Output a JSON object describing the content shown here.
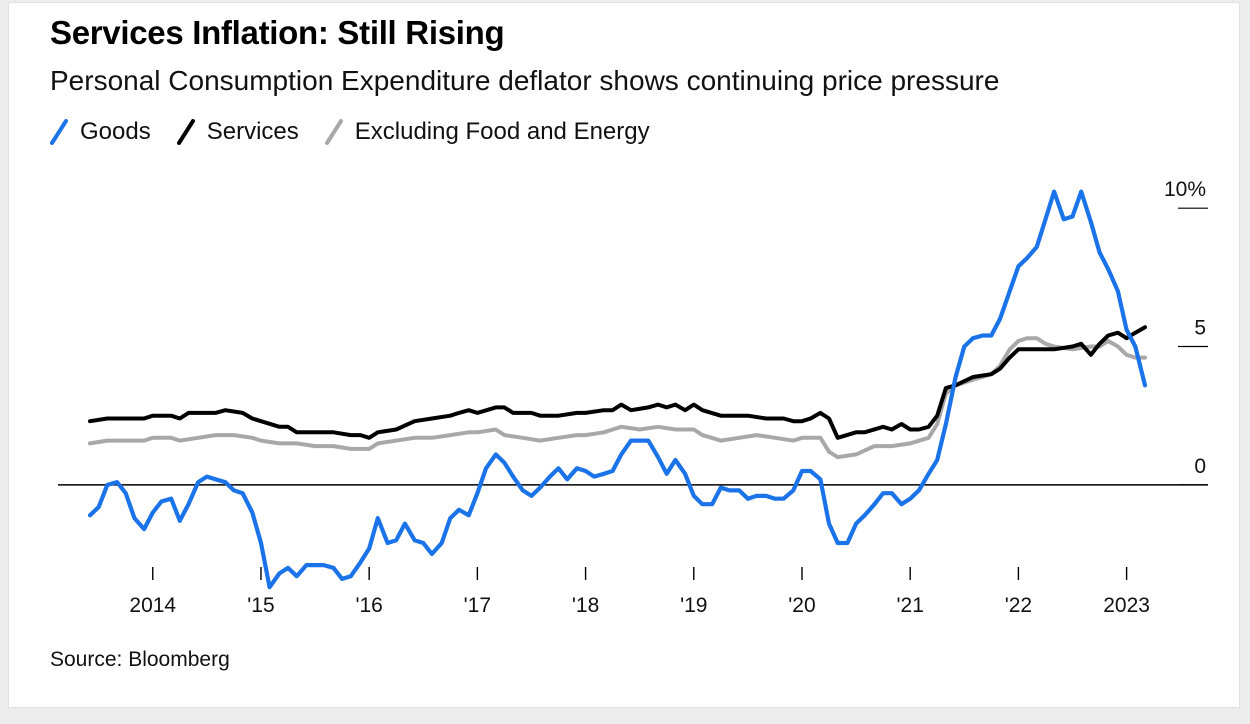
{
  "colors": {
    "goods": "#1a73e8",
    "services": "#000000",
    "core": "#a8a8a8"
  },
  "chart_data": {
    "type": "line",
    "title": "Services Inflation: Still Rising",
    "subtitle": "Personal Consumption Expenditure deflator shows continuing price pressure",
    "source": "Source: Bloomberg",
    "xlim": [
      2013.42,
      2023.17
    ],
    "ylim": [
      -3.8,
      11.2
    ],
    "y_ticks": [
      {
        "value": 10,
        "label": "10%"
      },
      {
        "value": 5,
        "label": "5"
      },
      {
        "value": 0,
        "label": "0"
      }
    ],
    "x_ticks": [
      {
        "value": 2014,
        "label": "2014"
      },
      {
        "value": 2015,
        "label": "'15"
      },
      {
        "value": 2016,
        "label": "'16"
      },
      {
        "value": 2017,
        "label": "'17"
      },
      {
        "value": 2018,
        "label": "'18"
      },
      {
        "value": 2019,
        "label": "'19"
      },
      {
        "value": 2020,
        "label": "'20"
      },
      {
        "value": 2021,
        "label": "'21"
      },
      {
        "value": 2022,
        "label": "'22"
      },
      {
        "value": 2023,
        "label": "2023"
      }
    ],
    "legend_position": "top-left",
    "grid": false,
    "series": [
      {
        "name": "Goods",
        "color": "#1a73e8",
        "points": [
          [
            2013.42,
            -1.1
          ],
          [
            2013.5,
            -0.8
          ],
          [
            2013.58,
            0.0
          ],
          [
            2013.67,
            0.1
          ],
          [
            2013.75,
            -0.3
          ],
          [
            2013.83,
            -1.2
          ],
          [
            2013.92,
            -1.6
          ],
          [
            2014.0,
            -1.0
          ],
          [
            2014.08,
            -0.6
          ],
          [
            2014.17,
            -0.5
          ],
          [
            2014.25,
            -1.3
          ],
          [
            2014.33,
            -0.7
          ],
          [
            2014.42,
            0.1
          ],
          [
            2014.5,
            0.3
          ],
          [
            2014.58,
            0.2
          ],
          [
            2014.67,
            0.1
          ],
          [
            2014.75,
            -0.2
          ],
          [
            2014.83,
            -0.3
          ],
          [
            2014.92,
            -1.0
          ],
          [
            2015.0,
            -2.1
          ],
          [
            2015.08,
            -3.7
          ],
          [
            2015.17,
            -3.2
          ],
          [
            2015.25,
            -3.0
          ],
          [
            2015.33,
            -3.3
          ],
          [
            2015.42,
            -2.9
          ],
          [
            2015.5,
            -2.9
          ],
          [
            2015.58,
            -2.9
          ],
          [
            2015.67,
            -3.0
          ],
          [
            2015.75,
            -3.4
          ],
          [
            2015.83,
            -3.3
          ],
          [
            2015.92,
            -2.8
          ],
          [
            2016.0,
            -2.3
          ],
          [
            2016.08,
            -1.2
          ],
          [
            2016.17,
            -2.1
          ],
          [
            2016.25,
            -2.0
          ],
          [
            2016.33,
            -1.4
          ],
          [
            2016.42,
            -2.0
          ],
          [
            2016.5,
            -2.1
          ],
          [
            2016.58,
            -2.5
          ],
          [
            2016.67,
            -2.1
          ],
          [
            2016.75,
            -1.2
          ],
          [
            2016.83,
            -0.9
          ],
          [
            2016.92,
            -1.1
          ],
          [
            2017.0,
            -0.3
          ],
          [
            2017.08,
            0.6
          ],
          [
            2017.17,
            1.1
          ],
          [
            2017.25,
            0.8
          ],
          [
            2017.33,
            0.3
          ],
          [
            2017.42,
            -0.2
          ],
          [
            2017.5,
            -0.4
          ],
          [
            2017.58,
            -0.1
          ],
          [
            2017.67,
            0.3
          ],
          [
            2017.75,
            0.6
          ],
          [
            2017.83,
            0.2
          ],
          [
            2017.92,
            0.6
          ],
          [
            2018.0,
            0.5
          ],
          [
            2018.08,
            0.3
          ],
          [
            2018.17,
            0.4
          ],
          [
            2018.25,
            0.5
          ],
          [
            2018.33,
            1.1
          ],
          [
            2018.42,
            1.6
          ],
          [
            2018.5,
            1.6
          ],
          [
            2018.58,
            1.6
          ],
          [
            2018.67,
            1.0
          ],
          [
            2018.75,
            0.4
          ],
          [
            2018.83,
            0.9
          ],
          [
            2018.92,
            0.4
          ],
          [
            2019.0,
            -0.4
          ],
          [
            2019.08,
            -0.7
          ],
          [
            2019.17,
            -0.7
          ],
          [
            2019.25,
            -0.1
          ],
          [
            2019.33,
            -0.2
          ],
          [
            2019.42,
            -0.2
          ],
          [
            2019.5,
            -0.5
          ],
          [
            2019.58,
            -0.4
          ],
          [
            2019.67,
            -0.4
          ],
          [
            2019.75,
            -0.5
          ],
          [
            2019.83,
            -0.5
          ],
          [
            2019.92,
            -0.2
          ],
          [
            2020.0,
            0.5
          ],
          [
            2020.08,
            0.5
          ],
          [
            2020.17,
            0.2
          ],
          [
            2020.25,
            -1.4
          ],
          [
            2020.33,
            -2.1
          ],
          [
            2020.42,
            -2.1
          ],
          [
            2020.5,
            -1.4
          ],
          [
            2020.58,
            -1.1
          ],
          [
            2020.67,
            -0.7
          ],
          [
            2020.75,
            -0.3
          ],
          [
            2020.83,
            -0.3
          ],
          [
            2020.92,
            -0.7
          ],
          [
            2021.0,
            -0.5
          ],
          [
            2021.08,
            -0.2
          ],
          [
            2021.17,
            0.4
          ],
          [
            2021.25,
            0.9
          ],
          [
            2021.33,
            2.2
          ],
          [
            2021.42,
            3.9
          ],
          [
            2021.5,
            5.0
          ],
          [
            2021.58,
            5.3
          ],
          [
            2021.67,
            5.4
          ],
          [
            2021.75,
            5.4
          ],
          [
            2021.83,
            6.0
          ],
          [
            2021.92,
            7.0
          ],
          [
            2022.0,
            7.9
          ],
          [
            2022.08,
            8.2
          ],
          [
            2022.17,
            8.6
          ],
          [
            2022.25,
            9.6
          ],
          [
            2022.33,
            10.6
          ],
          [
            2022.42,
            9.6
          ],
          [
            2022.5,
            9.7
          ],
          [
            2022.58,
            10.6
          ],
          [
            2022.67,
            9.5
          ],
          [
            2022.75,
            8.4
          ],
          [
            2022.83,
            7.8
          ],
          [
            2022.92,
            7.0
          ],
          [
            2023.0,
            5.6
          ],
          [
            2023.08,
            5.0
          ],
          [
            2023.17,
            3.6
          ]
        ]
      },
      {
        "name": "Services",
        "color": "#000000",
        "points": [
          [
            2013.42,
            2.3
          ],
          [
            2013.58,
            2.4
          ],
          [
            2013.75,
            2.4
          ],
          [
            2013.92,
            2.4
          ],
          [
            2014.0,
            2.5
          ],
          [
            2014.17,
            2.5
          ],
          [
            2014.25,
            2.4
          ],
          [
            2014.33,
            2.6
          ],
          [
            2014.5,
            2.6
          ],
          [
            2014.58,
            2.6
          ],
          [
            2014.67,
            2.7
          ],
          [
            2014.83,
            2.6
          ],
          [
            2014.92,
            2.4
          ],
          [
            2015.0,
            2.3
          ],
          [
            2015.17,
            2.1
          ],
          [
            2015.25,
            2.1
          ],
          [
            2015.33,
            1.9
          ],
          [
            2015.5,
            1.9
          ],
          [
            2015.67,
            1.9
          ],
          [
            2015.83,
            1.8
          ],
          [
            2015.92,
            1.8
          ],
          [
            2016.0,
            1.7
          ],
          [
            2016.08,
            1.9
          ],
          [
            2016.25,
            2.0
          ],
          [
            2016.42,
            2.3
          ],
          [
            2016.58,
            2.4
          ],
          [
            2016.75,
            2.5
          ],
          [
            2016.83,
            2.6
          ],
          [
            2016.92,
            2.7
          ],
          [
            2017.0,
            2.6
          ],
          [
            2017.17,
            2.8
          ],
          [
            2017.25,
            2.8
          ],
          [
            2017.33,
            2.6
          ],
          [
            2017.5,
            2.6
          ],
          [
            2017.58,
            2.5
          ],
          [
            2017.75,
            2.5
          ],
          [
            2017.92,
            2.6
          ],
          [
            2018.0,
            2.6
          ],
          [
            2018.17,
            2.7
          ],
          [
            2018.25,
            2.7
          ],
          [
            2018.33,
            2.9
          ],
          [
            2018.42,
            2.7
          ],
          [
            2018.58,
            2.8
          ],
          [
            2018.67,
            2.9
          ],
          [
            2018.75,
            2.8
          ],
          [
            2018.83,
            2.9
          ],
          [
            2018.92,
            2.7
          ],
          [
            2019.0,
            2.9
          ],
          [
            2019.08,
            2.7
          ],
          [
            2019.25,
            2.5
          ],
          [
            2019.33,
            2.5
          ],
          [
            2019.5,
            2.5
          ],
          [
            2019.67,
            2.4
          ],
          [
            2019.83,
            2.4
          ],
          [
            2019.92,
            2.3
          ],
          [
            2020.0,
            2.3
          ],
          [
            2020.08,
            2.4
          ],
          [
            2020.17,
            2.6
          ],
          [
            2020.25,
            2.4
          ],
          [
            2020.33,
            1.7
          ],
          [
            2020.5,
            1.9
          ],
          [
            2020.58,
            1.9
          ],
          [
            2020.75,
            2.1
          ],
          [
            2020.83,
            2.0
          ],
          [
            2020.92,
            2.2
          ],
          [
            2021.0,
            2.0
          ],
          [
            2021.08,
            2.0
          ],
          [
            2021.17,
            2.1
          ],
          [
            2021.25,
            2.5
          ],
          [
            2021.33,
            3.5
          ],
          [
            2021.42,
            3.6
          ],
          [
            2021.58,
            3.9
          ],
          [
            2021.75,
            4.0
          ],
          [
            2021.83,
            4.2
          ],
          [
            2021.92,
            4.6
          ],
          [
            2022.0,
            4.9
          ],
          [
            2022.17,
            4.9
          ],
          [
            2022.33,
            4.9
          ],
          [
            2022.5,
            5.0
          ],
          [
            2022.58,
            5.1
          ],
          [
            2022.67,
            4.7
          ],
          [
            2022.75,
            5.1
          ],
          [
            2022.83,
            5.4
          ],
          [
            2022.92,
            5.5
          ],
          [
            2023.0,
            5.3
          ],
          [
            2023.08,
            5.5
          ],
          [
            2023.17,
            5.7
          ]
        ]
      },
      {
        "name": "Excluding Food and Energy",
        "color": "#a8a8a8",
        "points": [
          [
            2013.42,
            1.5
          ],
          [
            2013.58,
            1.6
          ],
          [
            2013.75,
            1.6
          ],
          [
            2013.92,
            1.6
          ],
          [
            2014.0,
            1.7
          ],
          [
            2014.17,
            1.7
          ],
          [
            2014.25,
            1.6
          ],
          [
            2014.42,
            1.7
          ],
          [
            2014.58,
            1.8
          ],
          [
            2014.75,
            1.8
          ],
          [
            2014.92,
            1.7
          ],
          [
            2015.0,
            1.6
          ],
          [
            2015.17,
            1.5
          ],
          [
            2015.33,
            1.5
          ],
          [
            2015.5,
            1.4
          ],
          [
            2015.67,
            1.4
          ],
          [
            2015.83,
            1.3
          ],
          [
            2016.0,
            1.3
          ],
          [
            2016.08,
            1.5
          ],
          [
            2016.25,
            1.6
          ],
          [
            2016.42,
            1.7
          ],
          [
            2016.58,
            1.7
          ],
          [
            2016.75,
            1.8
          ],
          [
            2016.92,
            1.9
          ],
          [
            2017.0,
            1.9
          ],
          [
            2017.17,
            2.0
          ],
          [
            2017.25,
            1.8
          ],
          [
            2017.42,
            1.7
          ],
          [
            2017.58,
            1.6
          ],
          [
            2017.75,
            1.7
          ],
          [
            2017.92,
            1.8
          ],
          [
            2018.0,
            1.8
          ],
          [
            2018.17,
            1.9
          ],
          [
            2018.25,
            2.0
          ],
          [
            2018.33,
            2.1
          ],
          [
            2018.5,
            2.0
          ],
          [
            2018.67,
            2.1
          ],
          [
            2018.83,
            2.0
          ],
          [
            2019.0,
            2.0
          ],
          [
            2019.08,
            1.8
          ],
          [
            2019.25,
            1.6
          ],
          [
            2019.42,
            1.7
          ],
          [
            2019.58,
            1.8
          ],
          [
            2019.75,
            1.7
          ],
          [
            2019.92,
            1.6
          ],
          [
            2020.0,
            1.7
          ],
          [
            2020.17,
            1.7
          ],
          [
            2020.25,
            1.2
          ],
          [
            2020.33,
            1.0
          ],
          [
            2020.5,
            1.1
          ],
          [
            2020.67,
            1.4
          ],
          [
            2020.83,
            1.4
          ],
          [
            2021.0,
            1.5
          ],
          [
            2021.17,
            1.7
          ],
          [
            2021.25,
            2.2
          ],
          [
            2021.33,
            3.3
          ],
          [
            2021.42,
            3.6
          ],
          [
            2021.58,
            3.8
          ],
          [
            2021.75,
            4.0
          ],
          [
            2021.83,
            4.3
          ],
          [
            2021.92,
            4.9
          ],
          [
            2022.0,
            5.2
          ],
          [
            2022.08,
            5.3
          ],
          [
            2022.17,
            5.3
          ],
          [
            2022.25,
            5.1
          ],
          [
            2022.33,
            5.0
          ],
          [
            2022.5,
            4.9
          ],
          [
            2022.67,
            5.0
          ],
          [
            2022.75,
            5.0
          ],
          [
            2022.83,
            5.2
          ],
          [
            2022.92,
            5.0
          ],
          [
            2023.0,
            4.7
          ],
          [
            2023.08,
            4.6
          ],
          [
            2023.17,
            4.6
          ]
        ]
      }
    ]
  }
}
